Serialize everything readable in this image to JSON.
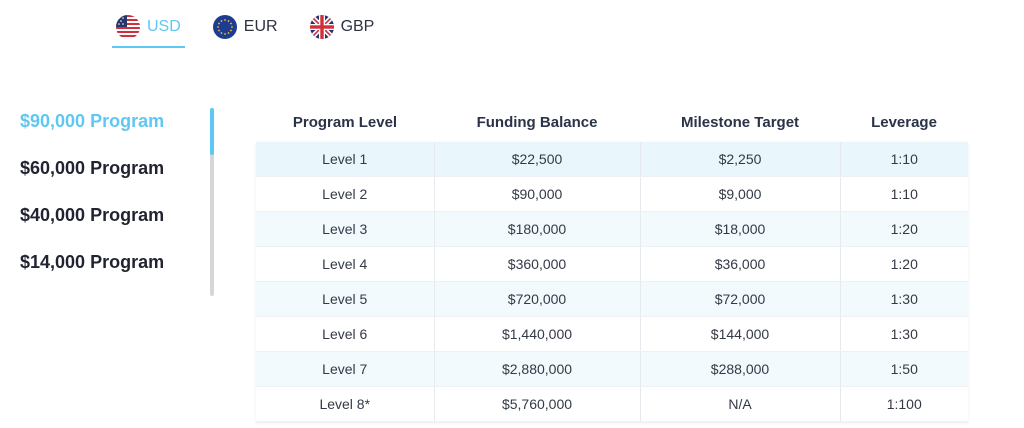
{
  "currency_tabs": [
    {
      "label": "USD",
      "icon": "us-flag-icon",
      "active": true
    },
    {
      "label": "EUR",
      "icon": "eu-flag-icon",
      "active": false
    },
    {
      "label": "GBP",
      "icon": "uk-flag-icon",
      "active": false
    }
  ],
  "programs": [
    {
      "label": "$90,000 Program",
      "active": true
    },
    {
      "label": "$60,000 Program",
      "active": false
    },
    {
      "label": "$40,000 Program",
      "active": false
    },
    {
      "label": "$14,000 Program",
      "active": false
    }
  ],
  "table": {
    "headers": [
      "Program Level",
      "Funding Balance",
      "Milestone Target",
      "Leverage"
    ],
    "rows": [
      [
        "Level 1",
        "$22,500",
        "$2,250",
        "1:10"
      ],
      [
        "Level 2",
        "$90,000",
        "$9,000",
        "1:10"
      ],
      [
        "Level 3",
        "$180,000",
        "$18,000",
        "1:20"
      ],
      [
        "Level 4",
        "$360,000",
        "$36,000",
        "1:20"
      ],
      [
        "Level 5",
        "$720,000",
        "$72,000",
        "1:30"
      ],
      [
        "Level 6",
        "$1,440,000",
        "$144,000",
        "1:30"
      ],
      [
        "Level 7",
        "$2,880,000",
        "$288,000",
        "1:50"
      ],
      [
        "Level 8*",
        "$5,760,000",
        "N/A",
        "1:100"
      ]
    ]
  },
  "colors": {
    "accent": "#5ec8f2",
    "text": "#1f2430",
    "row_alt": "#f3fafd"
  }
}
